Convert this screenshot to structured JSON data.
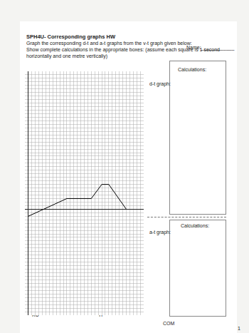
{
  "header": {
    "course_title": "SPH4U- Corresponding graphs HW",
    "name_label": "Name:____________",
    "instructions": [
      "Graph the corresponding d-t and a-t graphs from the v-t graph given below:",
      "Show complete calculations in the appropriate boxes: (assume each square is 1 second horizontally and one metre vertically)"
    ]
  },
  "chart_data": {
    "type": "line",
    "x": [
      0,
      11,
      18,
      21,
      23,
      28
    ],
    "values": [
      -2,
      3,
      3,
      7,
      7,
      0
    ],
    "color": "#000000",
    "xlim": [
      -1,
      33
    ],
    "ylim": [
      -30,
      39
    ],
    "xticks": [
      -1,
      0,
      1,
      2,
      3,
      4,
      5,
      6,
      7,
      8,
      9,
      10,
      11,
      12,
      13,
      14,
      15,
      16,
      17,
      18,
      19,
      20,
      21,
      22,
      23,
      24,
      25,
      26,
      27,
      28,
      29,
      30,
      31,
      32,
      33
    ],
    "yticks": [
      -30,
      -29,
      -28,
      -27,
      -26,
      -25,
      -24,
      -23,
      -22,
      -21,
      -20,
      -19,
      -18,
      -17,
      -16,
      -15,
      -14,
      -13,
      -12,
      -11,
      -10,
      -9,
      -8,
      -7,
      -6,
      -5,
      -4,
      -3,
      -2,
      -1,
      0,
      1,
      2,
      3,
      4,
      5,
      6,
      7,
      8,
      9,
      10,
      11,
      12,
      13,
      14,
      15,
      16,
      17,
      18,
      19,
      20,
      21,
      22,
      23,
      24,
      25,
      26,
      27,
      28,
      29,
      30,
      31,
      32,
      33,
      34,
      35,
      36,
      37,
      38,
      39
    ],
    "grid": true,
    "tick_labels": false
  },
  "boxes": [
    {
      "label": "d-t graph:",
      "calc_label": "Calculations:"
    },
    {
      "label": "a-t graph:",
      "calc_label": "Calculations:"
    }
  ],
  "footer": {
    "marks": [
      "KU",
      "TI",
      "COM"
    ],
    "page": 1
  }
}
